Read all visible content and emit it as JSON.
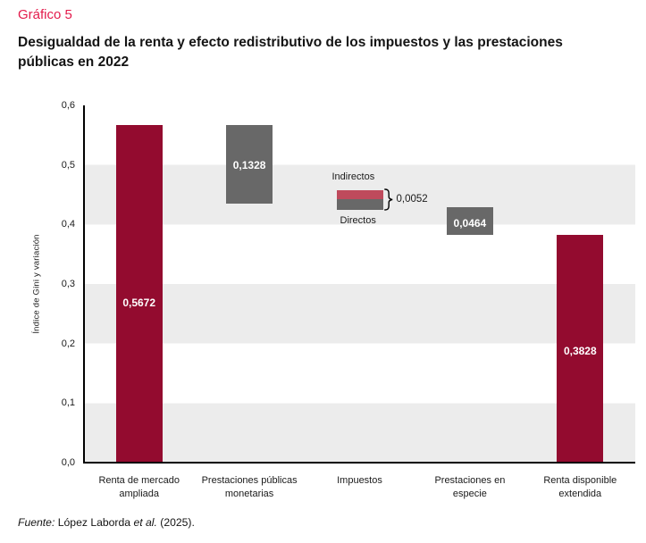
{
  "page": {
    "background": "#ffffff"
  },
  "header": {
    "kicker": "Gráfico 5",
    "title": "Desigualdad de la renta y efecto redistributivo de los impuestos y las prestaciones\npúblicas en 2022"
  },
  "chart_data": {
    "type": "bar",
    "subtype": "waterfall",
    "title": "Desigualdad de la renta y efecto redistributivo de los impuestos y las prestaciones públicas en 2022",
    "ylabel": "Índice de Gini y variación",
    "xlabel": "",
    "ylim": [
      0,
      0.6
    ],
    "grid": "alternating horizontal bands of 0.1 height, shaded on 0.0-0.1, 0.2-0.3, 0.4-0.5",
    "legend": "none",
    "yticks": [
      {
        "label": "0,6",
        "v": 0.6
      },
      {
        "label": "0,5",
        "v": 0.5
      },
      {
        "label": "0,4",
        "v": 0.4
      },
      {
        "label": "0,3",
        "v": 0.3
      },
      {
        "label": "0,2",
        "v": 0.2
      },
      {
        "label": "0,1",
        "v": 0.1
      },
      {
        "label": "0,0",
        "v": 0.0
      }
    ],
    "categories": [
      "Renta de mercado\nampliada",
      "Prestaciones públicas\nmonetarias",
      "Impuestos",
      "Prestaciones en\nespecie",
      "Renta disponible\nextendida"
    ],
    "bars": [
      {
        "category": "Renta de mercado ampliada",
        "value": 0.5672,
        "value_label": "0,5672",
        "label_v": 0.2685,
        "segments": [
          {
            "color_key": "dark_red",
            "from": 0,
            "to": 0.5672
          }
        ]
      },
      {
        "category": "Prestaciones públicas monetarias",
        "value": 0.1328,
        "value_label": "0,1328",
        "label_v": 0.4988,
        "segments": [
          {
            "color_key": "gray",
            "from": 0.4344,
            "to": 0.5672
          }
        ]
      },
      {
        "category": "Impuestos",
        "value": 0.0052,
        "value_label": null,
        "segments": [
          {
            "series": "Indirectos",
            "color_key": "light_red",
            "from": 0.4425,
            "to": 0.457,
            "not_to_scale": true
          },
          {
            "series": "Directos",
            "color_key": "gray",
            "from": 0.424,
            "to": 0.4425,
            "not_to_scale": true
          }
        ]
      },
      {
        "category": "Prestaciones en especie",
        "value": 0.0464,
        "value_label": "0,0464",
        "label_v": 0.4013,
        "segments": [
          {
            "color_key": "gray",
            "from": 0.3828,
            "to": 0.4292
          }
        ]
      },
      {
        "category": "Renta disponible extendida",
        "value": 0.3828,
        "value_label": "0,3828",
        "label_v": 0.1868,
        "segments": [
          {
            "color_key": "dark_red",
            "from": 0,
            "to": 0.3828
          }
        ]
      }
    ],
    "annotations": {
      "indirectos_label": "Indirectos",
      "directos_label": "Directos",
      "brace_value_label": "0,0052"
    },
    "colors": {
      "dark_red": "#930b2f",
      "light_red": "#bf4a5c",
      "gray": "#686868",
      "band": "#ececec",
      "kicker_red": "#e31a4b",
      "value_label_text": "#ffffff",
      "axis": "#000000"
    }
  },
  "footer": {
    "fuente_italic": "Fuente:",
    "authors": " López Laborda ",
    "etal_italic": "et al.",
    "year_suffix": " (2025)."
  }
}
